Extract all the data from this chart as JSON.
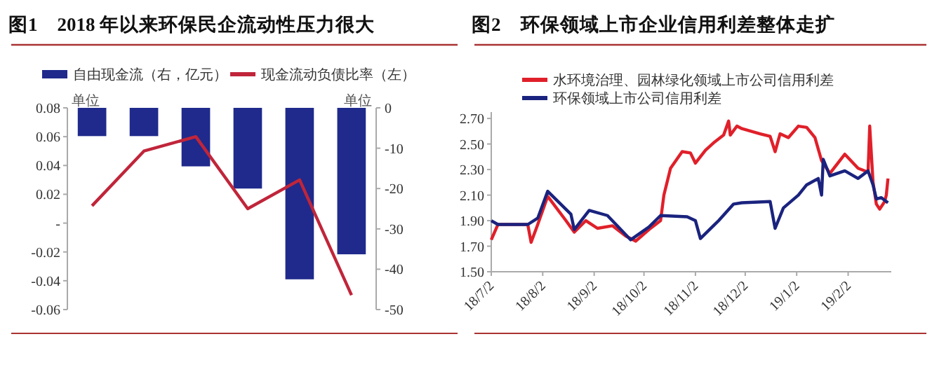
{
  "chart_data": [
    {
      "type": "bar",
      "title": "图1　2018 年以来环保民企流动性压力很大",
      "categories": [
        null,
        null,
        null,
        null,
        null,
        null
      ],
      "series": [
        {
          "name": "自由现金流（右，亿元）",
          "axis": "y2",
          "color": "#1f2a8c",
          "values": [
            -7,
            -7,
            -14.5,
            -20,
            -42.5,
            -36.3
          ]
        },
        {
          "name": "现金流动负债比率（左）",
          "type": "line",
          "color": "#c0253a",
          "values": [
            0.012,
            0.05,
            0.06,
            0.01,
            0.03,
            -0.05
          ]
        }
      ],
      "ylim": [
        -0.06,
        0.08
      ],
      "yticks": [
        -0.06,
        -0.04,
        -0.02,
        {
          "value": 0,
          "label": "-"
        },
        0.02,
        0.04,
        0.06,
        0.08
      ],
      "y2lim": [
        -50,
        0
      ],
      "y2ticks": [
        -50,
        -40,
        -30,
        -20,
        -10,
        0
      ],
      "annotations": [
        "单位",
        "单位"
      ],
      "legend": "top",
      "grid": false,
      "marker": "none",
      "line_style": "solid"
    },
    {
      "type": "line",
      "title": "图2　环保领域上市企业信用利差整体走扩",
      "series": [
        {
          "name": "水环境治理、园林绿化领域上市公司信用利差",
          "color": "#e0202a",
          "x": [
            "2018-07-02",
            "2018-07-06",
            "2018-07-24",
            "2018-07-26",
            "2018-07-30",
            "2018-08-05",
            "2018-08-16",
            "2018-08-21",
            "2018-08-28",
            "2018-09-04",
            "2018-09-13",
            "2018-09-21",
            "2018-09-27",
            "2018-10-05",
            "2018-10-12",
            "2018-10-14",
            "2018-10-18",
            "2018-10-25",
            "2018-10-30",
            "2018-11-02",
            "2018-11-08",
            "2018-11-13",
            "2018-11-19",
            "2018-11-22",
            "2018-11-23",
            "2018-11-27",
            "2018-11-30",
            "2018-12-11",
            "2018-12-17",
            "2018-12-20",
            "2018-12-23",
            "2018-12-28",
            "2019-01-03",
            "2019-01-08",
            "2019-01-13",
            "2019-01-15",
            "2019-01-17",
            "2019-01-22",
            "2019-01-31",
            "2019-02-08",
            "2019-02-14",
            "2019-02-15",
            "2019-02-17",
            "2019-02-19",
            "2019-02-21",
            "2019-02-24",
            "2019-02-25",
            "2019-02-26"
          ],
          "values": [
            1.75,
            1.87,
            1.87,
            1.73,
            1.87,
            2.09,
            1.9,
            1.81,
            1.9,
            1.84,
            1.86,
            1.78,
            1.74,
            1.83,
            1.9,
            2.1,
            2.31,
            2.44,
            2.43,
            2.35,
            2.45,
            2.51,
            2.57,
            2.68,
            2.57,
            2.64,
            2.62,
            2.58,
            2.56,
            2.44,
            2.58,
            2.55,
            2.64,
            2.63,
            2.55,
            2.46,
            2.37,
            2.27,
            2.42,
            2.31,
            2.28,
            2.64,
            2.2,
            2.03,
            1.99,
            2.05,
            2.1,
            2.23
          ]
        },
        {
          "name": "环保领域上市公司信用利差",
          "color": "#1a237e",
          "x": [
            "2018-07-02",
            "2018-07-06",
            "2018-07-24",
            "2018-07-30",
            "2018-08-05",
            "2018-08-19",
            "2018-08-21",
            "2018-08-30",
            "2018-09-10",
            "2018-09-24",
            "2018-10-05",
            "2018-10-12",
            "2018-10-28",
            "2018-11-02",
            "2018-11-05",
            "2018-11-16",
            "2018-11-25",
            "2018-11-30",
            "2018-12-17",
            "2018-12-20",
            "2018-12-25",
            "2019-01-03",
            "2019-01-08",
            "2019-01-15",
            "2019-01-17",
            "2019-01-18",
            "2019-01-22",
            "2019-01-31",
            "2019-02-08",
            "2019-02-14",
            "2019-02-17",
            "2019-02-19",
            "2019-02-22",
            "2019-02-26"
          ],
          "values": [
            1.9,
            1.87,
            1.87,
            1.92,
            2.13,
            1.95,
            1.83,
            1.98,
            1.94,
            1.75,
            1.85,
            1.94,
            1.93,
            1.9,
            1.76,
            1.9,
            2.03,
            2.04,
            2.05,
            1.84,
            2.0,
            2.1,
            2.18,
            2.23,
            2.1,
            2.38,
            2.25,
            2.29,
            2.23,
            2.29,
            2.18,
            2.07,
            2.08,
            2.04
          ]
        }
      ],
      "xlim": [
        "2018-07-02",
        "2019-02-28"
      ],
      "xticks": [
        {
          "value": "2018-07-02",
          "label": "18/7/2"
        },
        {
          "value": "2018-08-02",
          "label": "18/8/2"
        },
        {
          "value": "2018-09-02",
          "label": "18/9/2"
        },
        {
          "value": "2018-10-02",
          "label": "18/10/2"
        },
        {
          "value": "2018-11-02",
          "label": "18/11/2"
        },
        {
          "value": "2018-12-02",
          "label": "18/12/2"
        },
        {
          "value": "2019-01-02",
          "label": "19/1/2"
        },
        {
          "value": "2019-02-02",
          "label": "19/2/2"
        }
      ],
      "ylim": [
        1.5,
        2.75
      ],
      "yticks": [
        {
          "value": 1.5,
          "label": "1.50"
        },
        {
          "value": 1.7,
          "label": "1.70"
        },
        {
          "value": 1.9,
          "label": "1.90"
        },
        {
          "value": 2.1,
          "label": "2.10"
        },
        {
          "value": 2.3,
          "label": "2.30"
        },
        {
          "value": 2.5,
          "label": "2.50"
        },
        {
          "value": 2.7,
          "label": "2.70"
        }
      ],
      "legend": "top",
      "grid": false,
      "marker": "none",
      "line_style": "solid"
    }
  ]
}
